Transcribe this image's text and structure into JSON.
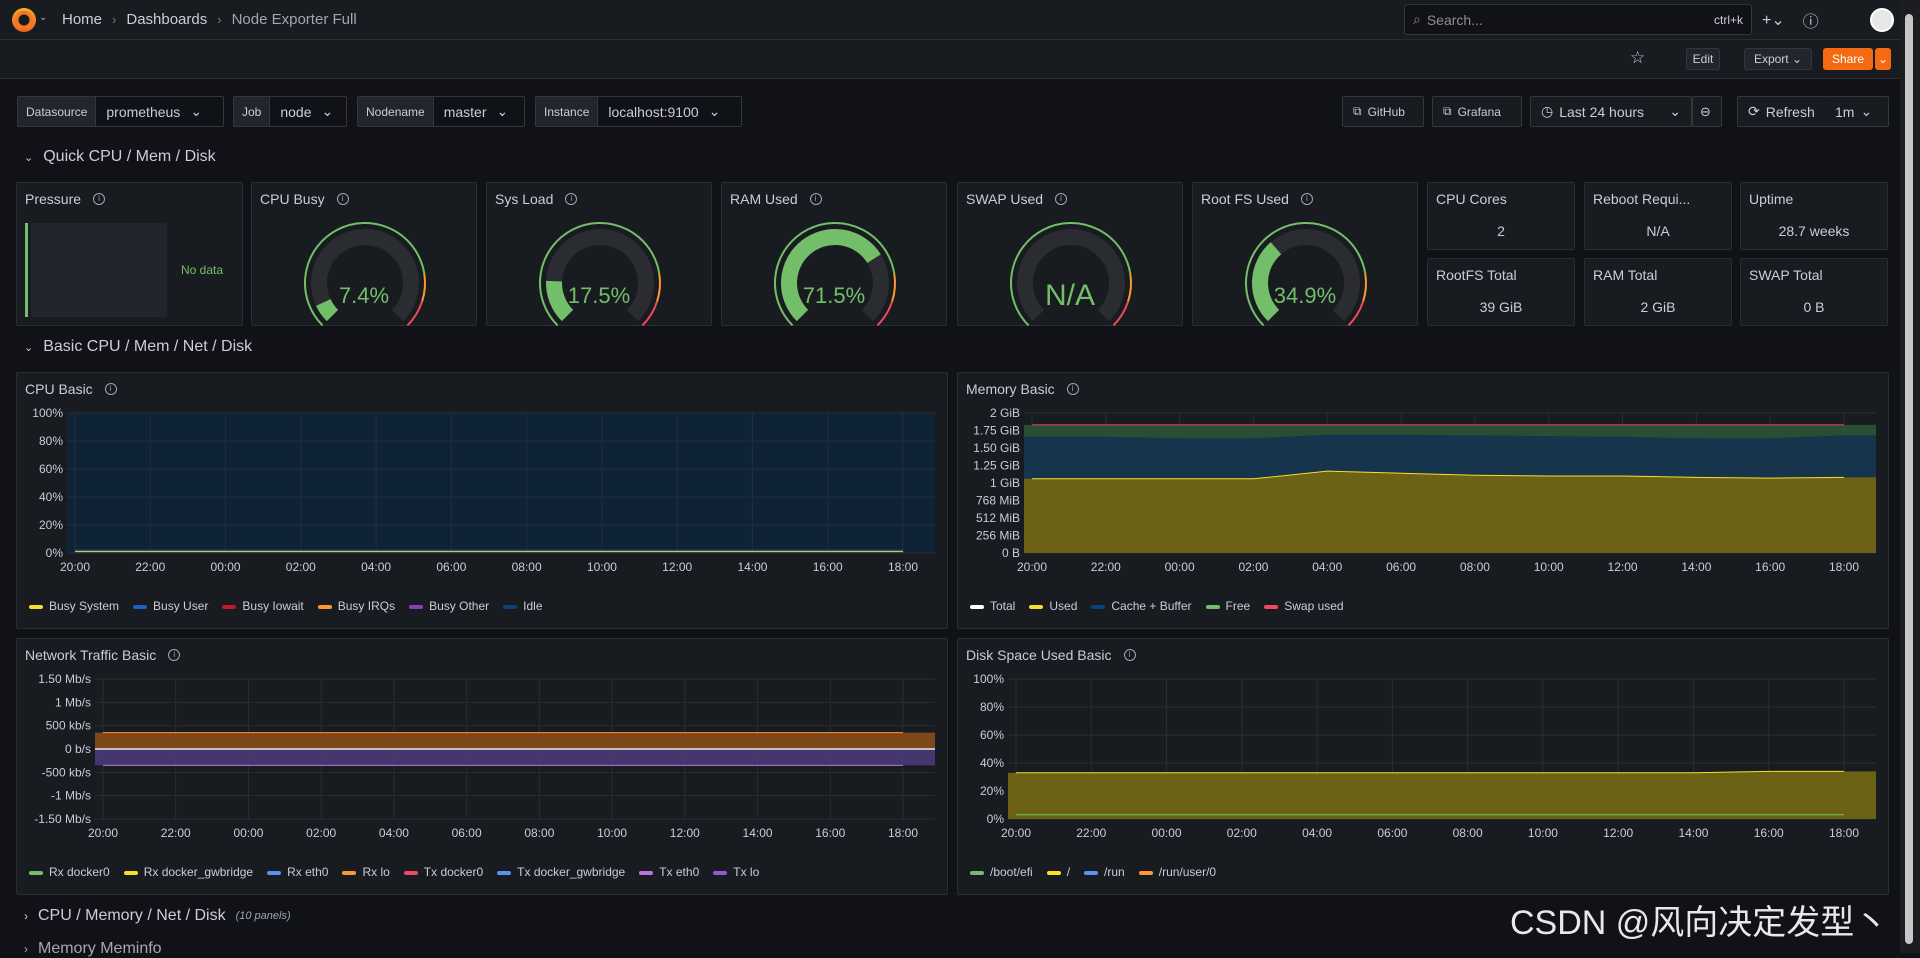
{
  "breadcrumbs": [
    "Home",
    "Dashboards",
    "Node Exporter Full"
  ],
  "search": {
    "placeholder": "Search...",
    "shortcut": "ctrl+k"
  },
  "toolbar": {
    "edit": "Edit",
    "export": "Export",
    "share": "Share"
  },
  "variables": [
    {
      "label": "Datasource",
      "value": "prometheus"
    },
    {
      "label": "Job",
      "value": "node"
    },
    {
      "label": "Nodename",
      "value": "master"
    },
    {
      "label": "Instance",
      "value": "localhost:9100"
    }
  ],
  "links": {
    "github": "GitHub",
    "grafana": "Grafana"
  },
  "time_range": "Last 24 hours",
  "refresh": {
    "label": "Refresh",
    "interval": "1m"
  },
  "rows": {
    "quick": "Quick CPU / Mem / Disk",
    "basic": "Basic CPU / Mem / Net / Disk",
    "cpu_mem_net": "CPU / Memory / Net / Disk",
    "cpu_mem_net_count": "(10 panels)",
    "memory_meminfo": "Memory Meminfo"
  },
  "quick_panels": {
    "pressure": {
      "title": "Pressure",
      "nodata": "No data"
    },
    "gauges": [
      {
        "title": "CPU Busy",
        "value": "7.4%",
        "fraction": 0.074
      },
      {
        "title": "Sys Load",
        "value": "17.5%",
        "fraction": 0.175
      },
      {
        "title": "RAM Used",
        "value": "71.5%",
        "fraction": 0.715
      },
      {
        "title": "SWAP Used",
        "value": "N/A",
        "fraction": 0
      },
      {
        "title": "Root FS Used",
        "value": "34.9%",
        "fraction": 0.349
      }
    ],
    "stats": [
      {
        "title": "CPU Cores",
        "value": "2"
      },
      {
        "title": "Reboot Requi...",
        "value": "N/A"
      },
      {
        "title": "Uptime",
        "value": "28.7 weeks"
      },
      {
        "title": "RootFS Total",
        "value": "39 GiB"
      },
      {
        "title": "RAM Total",
        "value": "2 GiB"
      },
      {
        "title": "SWAP Total",
        "value": "0 B"
      }
    ]
  },
  "colors": {
    "green": "#73bf69",
    "orange": "#ff9830",
    "red": "#f2495c",
    "yellow": "#fade2a",
    "blue": "#5794f2",
    "purple": "#b877d9",
    "accent": "#f46a12"
  },
  "chart_data": [
    {
      "type": "area",
      "title": "CPU Basic",
      "x": [
        "20:00",
        "22:00",
        "00:00",
        "02:00",
        "04:00",
        "06:00",
        "08:00",
        "10:00",
        "12:00",
        "14:00",
        "16:00",
        "18:00"
      ],
      "yticks": [
        "100%",
        "80%",
        "60%",
        "40%",
        "20%",
        "0%"
      ],
      "ylim": [
        0,
        100
      ],
      "series": [
        {
          "name": "Busy System",
          "color": "#fade2a",
          "values": [
            1,
            1,
            1,
            1,
            1,
            1,
            1,
            1,
            1,
            1,
            1,
            1
          ]
        },
        {
          "name": "Busy User",
          "color": "#1f60c4",
          "values": [
            2,
            2,
            2,
            2,
            2,
            2,
            2,
            2,
            2,
            2,
            2,
            2
          ]
        },
        {
          "name": "Busy Iowait",
          "color": "#c4162a",
          "values": [
            0,
            0,
            0,
            0,
            0,
            0,
            0,
            0,
            0,
            0,
            0,
            0
          ]
        },
        {
          "name": "Busy IRQs",
          "color": "#ff9830",
          "values": [
            0,
            0,
            0,
            0,
            0,
            0,
            0,
            0,
            0,
            0,
            0,
            0
          ]
        },
        {
          "name": "Busy Other",
          "color": "#8f3bb8",
          "values": [
            0,
            0,
            0,
            0,
            0,
            0,
            0,
            0,
            0,
            0,
            0,
            0
          ]
        },
        {
          "name": "Idle",
          "color": "#0a437c",
          "values": [
            97,
            97,
            97,
            97,
            97,
            97,
            97,
            97,
            97,
            97,
            97,
            97
          ]
        }
      ]
    },
    {
      "type": "area",
      "title": "Memory Basic",
      "x": [
        "20:00",
        "22:00",
        "00:00",
        "02:00",
        "04:00",
        "06:00",
        "08:00",
        "10:00",
        "12:00",
        "14:00",
        "16:00",
        "18:00"
      ],
      "yticks": [
        "2 GiB",
        "1.75 GiB",
        "1.50 GiB",
        "1.25 GiB",
        "1 GiB",
        "768 MiB",
        "512 MiB",
        "256 MiB",
        "0 B"
      ],
      "ylim": [
        0,
        2
      ],
      "series": [
        {
          "name": "Total",
          "color": "#ffffff",
          "values": [
            1.83,
            1.83,
            1.83,
            1.83,
            1.83,
            1.83,
            1.83,
            1.83,
            1.83,
            1.83,
            1.83,
            1.83
          ]
        },
        {
          "name": "Used",
          "color": "#fade2a",
          "values": [
            1.06,
            1.06,
            1.06,
            1.06,
            1.17,
            1.14,
            1.11,
            1.1,
            1.1,
            1.08,
            1.07,
            1.08
          ]
        },
        {
          "name": "Cache + Buffer",
          "color": "#0a437c",
          "values": [
            0.6,
            0.6,
            0.58,
            0.58,
            0.52,
            0.55,
            0.57,
            0.57,
            0.56,
            0.56,
            0.57,
            0.6
          ]
        },
        {
          "name": "Free",
          "color": "#73bf69",
          "values": [
            0.15,
            0.15,
            0.16,
            0.17,
            0.12,
            0.13,
            0.14,
            0.15,
            0.16,
            0.18,
            0.18,
            0.12
          ]
        },
        {
          "name": "Swap used",
          "color": "#f2495c",
          "values": [
            0,
            0,
            0,
            0,
            0,
            0,
            0,
            0,
            0,
            0,
            0,
            0
          ]
        }
      ]
    },
    {
      "type": "area",
      "title": "Network Traffic Basic",
      "x": [
        "20:00",
        "22:00",
        "00:00",
        "02:00",
        "04:00",
        "06:00",
        "08:00",
        "10:00",
        "12:00",
        "14:00",
        "16:00",
        "18:00"
      ],
      "yticks": [
        "1.50 Mb/s",
        "1 Mb/s",
        "500 kb/s",
        "0 b/s",
        "-500 kb/s",
        "-1 Mb/s",
        "-1.50 Mb/s"
      ],
      "ylim": [
        -1.5,
        1.5
      ],
      "series": [
        {
          "name": "Rx docker0",
          "color": "#73bf69",
          "values": [
            0,
            0,
            0,
            0,
            0,
            0,
            0,
            0,
            0,
            0,
            0,
            0
          ]
        },
        {
          "name": "Rx docker_gwbridge",
          "color": "#fade2a",
          "values": [
            0,
            0,
            0,
            0,
            0,
            0,
            0,
            0,
            0,
            0,
            0,
            0
          ]
        },
        {
          "name": "Rx eth0",
          "color": "#5794f2",
          "values": [
            0.02,
            0.02,
            0.02,
            0.02,
            0.02,
            0.02,
            0.02,
            0.02,
            0.02,
            0.02,
            0.02,
            0.02
          ]
        },
        {
          "name": "Rx lo",
          "color": "#ff9830",
          "values": [
            0.35,
            0.35,
            0.35,
            0.35,
            0.35,
            0.35,
            0.35,
            0.35,
            0.35,
            0.35,
            0.35,
            0.35
          ]
        },
        {
          "name": "Tx docker0",
          "color": "#f2495c",
          "values": [
            0,
            0,
            0,
            0,
            0,
            0,
            0,
            0,
            0,
            0,
            0,
            0
          ]
        },
        {
          "name": "Tx docker_gwbridge",
          "color": "#5794f2",
          "values": [
            0,
            0,
            0,
            0,
            0,
            0,
            0,
            0,
            0,
            0,
            0,
            0
          ]
        },
        {
          "name": "Tx eth0",
          "color": "#b877d9",
          "values": [
            -0.02,
            -0.02,
            -0.02,
            -0.02,
            -0.02,
            -0.02,
            -0.02,
            -0.02,
            -0.02,
            -0.02,
            -0.02,
            -0.02
          ]
        },
        {
          "name": "Tx lo",
          "color": "#8f5fd0",
          "values": [
            -0.35,
            -0.35,
            -0.35,
            -0.35,
            -0.35,
            -0.35,
            -0.35,
            -0.35,
            -0.35,
            -0.35,
            -0.35,
            -0.35
          ]
        }
      ]
    },
    {
      "type": "area",
      "title": "Disk Space Used Basic",
      "x": [
        "20:00",
        "22:00",
        "00:00",
        "02:00",
        "04:00",
        "06:00",
        "08:00",
        "10:00",
        "12:00",
        "14:00",
        "16:00",
        "18:00"
      ],
      "yticks": [
        "100%",
        "80%",
        "60%",
        "40%",
        "20%",
        "0%"
      ],
      "ylim": [
        0,
        100
      ],
      "series": [
        {
          "name": "/boot/efi",
          "color": "#73bf69",
          "values": [
            3,
            3,
            3,
            3,
            3,
            3,
            3,
            3,
            3,
            3,
            3,
            3
          ]
        },
        {
          "name": "/",
          "color": "#fade2a",
          "values": [
            33,
            33,
            33,
            33,
            33,
            33,
            33,
            33,
            33,
            33,
            34,
            34
          ]
        },
        {
          "name": "/run",
          "color": "#5794f2",
          "values": [
            0,
            0,
            0,
            0,
            0,
            0,
            0,
            0,
            0,
            0,
            0,
            0
          ]
        },
        {
          "name": "/run/user/0",
          "color": "#ff9830",
          "values": [
            0,
            0,
            0,
            0,
            0,
            0,
            0,
            0,
            0,
            0,
            0,
            0
          ]
        }
      ]
    }
  ],
  "watermark": "CSDN @风向决定发型丶"
}
